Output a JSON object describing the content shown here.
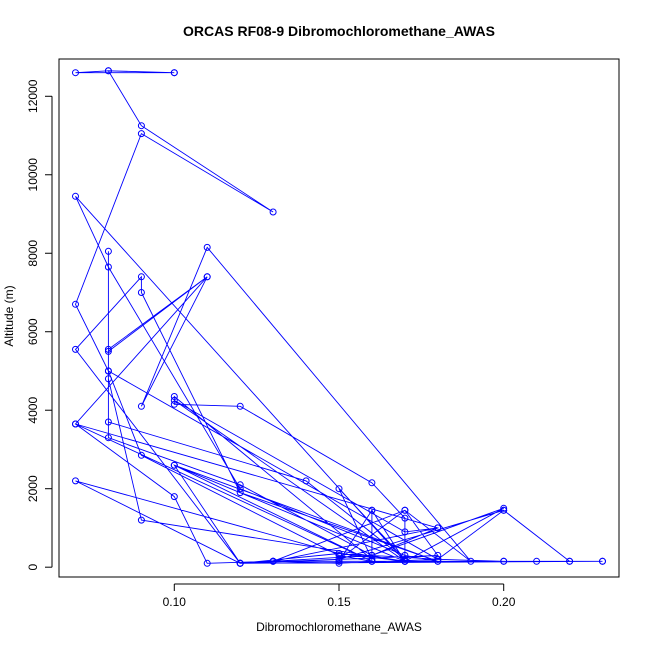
{
  "chart_data": {
    "type": "line",
    "title": "ORCAS RF08-9 Dibromochloromethane_AWAS",
    "xlabel": "Dibromochloromethane_AWAS",
    "ylabel": "Altitude (m)",
    "xlim": [
      0.065,
      0.235
    ],
    "ylim": [
      -250,
      12950
    ],
    "x_ticks": [
      0.1,
      0.15,
      0.2
    ],
    "x_tick_labels": [
      "0.10",
      "0.15",
      "0.20"
    ],
    "y_ticks": [
      0,
      2000,
      4000,
      6000,
      8000,
      10000,
      12000
    ],
    "y_tick_labels": [
      "0",
      "2000",
      "4000",
      "6000",
      "8000",
      "10000",
      "12000"
    ],
    "grid": false,
    "series_color": "#0000ff",
    "series": [
      {
        "points": [
          [
            0.1,
            12600
          ],
          [
            0.07,
            12600
          ],
          [
            0.08,
            12650
          ],
          [
            0.1,
            12600
          ],
          [
            0.08,
            12650
          ],
          [
            0.09,
            11250
          ],
          [
            0.13,
            9050
          ],
          [
            0.09,
            11050
          ],
          [
            0.07,
            6700
          ],
          [
            0.08,
            5000
          ],
          [
            0.08,
            4800
          ],
          [
            0.09,
            1200
          ],
          [
            0.17,
            150
          ],
          [
            0.16,
            1450
          ],
          [
            0.16,
            150
          ],
          [
            0.07,
            3650
          ],
          [
            0.11,
            7400
          ],
          [
            0.08,
            5550
          ],
          [
            0.08,
            8050
          ],
          [
            0.08,
            3300
          ],
          [
            0.12,
            2100
          ],
          [
            0.16,
            300
          ],
          [
            0.2,
            1500
          ],
          [
            0.17,
            150
          ],
          [
            0.07,
            9450
          ],
          [
            0.08,
            7650
          ],
          [
            0.12,
            2000
          ],
          [
            0.17,
            300
          ],
          [
            0.18,
            150
          ],
          [
            0.12,
            1900
          ],
          [
            0.09,
            7000
          ],
          [
            0.09,
            7400
          ],
          [
            0.07,
            5550
          ],
          [
            0.12,
            100
          ],
          [
            0.07,
            2200
          ],
          [
            0.15,
            350
          ],
          [
            0.17,
            150
          ],
          [
            0.2,
            150
          ],
          [
            0.23,
            150
          ],
          [
            0.22,
            150
          ],
          [
            0.2,
            1450
          ],
          [
            0.15,
            200
          ],
          [
            0.17,
            1450
          ],
          [
            0.19,
            150
          ],
          [
            0.11,
            8150
          ],
          [
            0.09,
            4100
          ],
          [
            0.11,
            7400
          ],
          [
            0.08,
            5500
          ],
          [
            0.08,
            3700
          ],
          [
            0.14,
            2200
          ],
          [
            0.17,
            200
          ],
          [
            0.15,
            2000
          ],
          [
            0.16,
            200
          ],
          [
            0.1,
            4350
          ],
          [
            0.1,
            4150
          ],
          [
            0.12,
            4100
          ],
          [
            0.16,
            2150
          ],
          [
            0.17,
            1250
          ],
          [
            0.17,
            150
          ],
          [
            0.13,
            150
          ],
          [
            0.18,
            1000
          ],
          [
            0.17,
            900
          ],
          [
            0.1,
            4250
          ],
          [
            0.17,
            150
          ],
          [
            0.1,
            2600
          ],
          [
            0.16,
            150
          ],
          [
            0.23,
            150
          ],
          [
            0.12,
            100
          ],
          [
            0.16,
            300
          ],
          [
            0.18,
            1000
          ],
          [
            0.07,
            3650
          ],
          [
            0.1,
            1800
          ],
          [
            0.11,
            100
          ],
          [
            0.13,
            150
          ],
          [
            0.15,
            100
          ],
          [
            0.18,
            200
          ],
          [
            0.2,
            150
          ],
          [
            0.22,
            150
          ],
          [
            0.2,
            1450
          ],
          [
            0.18,
            200
          ],
          [
            0.08,
            5000
          ],
          [
            0.09,
            2850
          ],
          [
            0.15,
            300
          ],
          [
            0.16,
            150
          ],
          [
            0.16,
            1450
          ],
          [
            0.15,
            150
          ],
          [
            0.13,
            150
          ],
          [
            0.17,
            1450
          ],
          [
            0.18,
            300
          ],
          [
            0.12,
            100
          ],
          [
            0.1,
            2600
          ],
          [
            0.18,
            150
          ],
          [
            0.15,
            150
          ],
          [
            0.21,
            150
          ],
          [
            0.12,
            100
          ],
          [
            0.15,
            350
          ],
          [
            0.18,
            200
          ]
        ]
      }
    ]
  }
}
